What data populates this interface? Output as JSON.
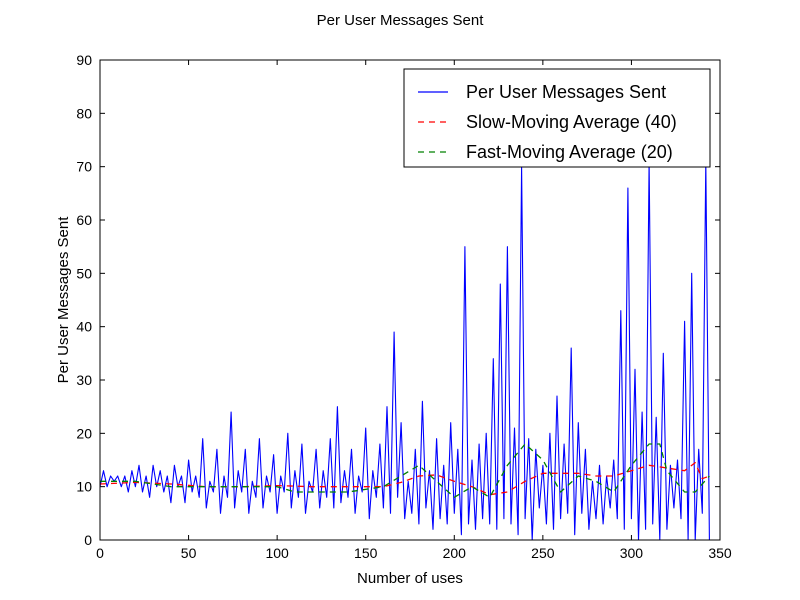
{
  "chart_data": {
    "type": "line",
    "title": "Per User Messages Sent",
    "xlabel": "Number of uses",
    "ylabel": "Per User Messages Sent",
    "xlim": [
      0,
      350
    ],
    "ylim": [
      0,
      90
    ],
    "xticks": [
      0,
      50,
      100,
      150,
      200,
      250,
      300,
      350
    ],
    "yticks": [
      0,
      10,
      20,
      30,
      40,
      50,
      60,
      70,
      80,
      90
    ],
    "grid": false,
    "legend_position": "top-right",
    "series": [
      {
        "name": "Per User Messages Sent",
        "color": "#0000ff",
        "style": "solid",
        "points": [
          [
            0,
            10
          ],
          [
            2,
            13
          ],
          [
            4,
            10
          ],
          [
            6,
            12
          ],
          [
            8,
            11
          ],
          [
            10,
            12
          ],
          [
            12,
            10
          ],
          [
            14,
            12
          ],
          [
            16,
            9
          ],
          [
            18,
            13
          ],
          [
            20,
            10
          ],
          [
            22,
            14
          ],
          [
            24,
            9
          ],
          [
            26,
            12
          ],
          [
            28,
            8
          ],
          [
            30,
            14
          ],
          [
            32,
            10
          ],
          [
            34,
            13
          ],
          [
            36,
            9
          ],
          [
            38,
            12
          ],
          [
            40,
            7
          ],
          [
            42,
            14
          ],
          [
            44,
            10
          ],
          [
            46,
            12
          ],
          [
            48,
            7
          ],
          [
            50,
            15
          ],
          [
            52,
            9
          ],
          [
            54,
            12
          ],
          [
            56,
            8
          ],
          [
            58,
            19
          ],
          [
            60,
            6
          ],
          [
            62,
            11
          ],
          [
            64,
            9
          ],
          [
            66,
            17
          ],
          [
            68,
            5
          ],
          [
            70,
            12
          ],
          [
            72,
            8
          ],
          [
            74,
            24
          ],
          [
            76,
            6
          ],
          [
            78,
            13
          ],
          [
            80,
            9
          ],
          [
            82,
            17
          ],
          [
            84,
            5
          ],
          [
            86,
            11
          ],
          [
            88,
            8
          ],
          [
            90,
            19
          ],
          [
            92,
            6
          ],
          [
            94,
            12
          ],
          [
            96,
            9
          ],
          [
            98,
            16
          ],
          [
            100,
            5
          ],
          [
            102,
            12
          ],
          [
            104,
            9
          ],
          [
            106,
            20
          ],
          [
            108,
            6
          ],
          [
            110,
            13
          ],
          [
            112,
            8
          ],
          [
            114,
            18
          ],
          [
            116,
            5
          ],
          [
            118,
            11
          ],
          [
            120,
            9
          ],
          [
            122,
            17
          ],
          [
            124,
            6
          ],
          [
            126,
            13
          ],
          [
            128,
            8
          ],
          [
            130,
            19
          ],
          [
            132,
            6
          ],
          [
            134,
            25
          ],
          [
            136,
            7
          ],
          [
            138,
            13
          ],
          [
            140,
            8
          ],
          [
            142,
            17
          ],
          [
            144,
            5
          ],
          [
            146,
            12
          ],
          [
            148,
            9
          ],
          [
            150,
            21
          ],
          [
            152,
            4
          ],
          [
            154,
            13
          ],
          [
            156,
            8
          ],
          [
            158,
            18
          ],
          [
            160,
            6
          ],
          [
            162,
            25
          ],
          [
            164,
            5
          ],
          [
            166,
            39
          ],
          [
            168,
            8
          ],
          [
            170,
            22
          ],
          [
            172,
            4
          ],
          [
            174,
            11
          ],
          [
            176,
            5
          ],
          [
            178,
            17
          ],
          [
            180,
            3
          ],
          [
            182,
            26
          ],
          [
            184,
            6
          ],
          [
            186,
            13
          ],
          [
            188,
            2
          ],
          [
            190,
            19
          ],
          [
            192,
            4
          ],
          [
            194,
            14
          ],
          [
            196,
            3
          ],
          [
            198,
            22
          ],
          [
            200,
            5
          ],
          [
            202,
            17
          ],
          [
            204,
            1
          ],
          [
            206,
            55
          ],
          [
            208,
            3
          ],
          [
            210,
            15
          ],
          [
            212,
            2
          ],
          [
            214,
            18
          ],
          [
            216,
            4
          ],
          [
            218,
            20
          ],
          [
            220,
            3
          ],
          [
            222,
            34
          ],
          [
            224,
            2
          ],
          [
            226,
            48
          ],
          [
            228,
            4
          ],
          [
            230,
            55
          ],
          [
            232,
            3
          ],
          [
            234,
            21
          ],
          [
            236,
            1
          ],
          [
            238,
            70
          ],
          [
            240,
            4
          ],
          [
            242,
            19
          ],
          [
            244,
            0
          ],
          [
            246,
            17
          ],
          [
            248,
            6
          ],
          [
            250,
            14
          ],
          [
            252,
            3
          ],
          [
            254,
            20
          ],
          [
            256,
            2
          ],
          [
            258,
            27
          ],
          [
            260,
            4
          ],
          [
            262,
            18
          ],
          [
            264,
            5
          ],
          [
            266,
            36
          ],
          [
            268,
            1
          ],
          [
            270,
            22
          ],
          [
            272,
            5
          ],
          [
            274,
            17
          ],
          [
            276,
            2
          ],
          [
            278,
            11
          ],
          [
            280,
            4
          ],
          [
            282,
            14
          ],
          [
            284,
            3
          ],
          [
            286,
            12
          ],
          [
            288,
            6
          ],
          [
            290,
            15
          ],
          [
            292,
            4
          ],
          [
            294,
            43
          ],
          [
            296,
            2
          ],
          [
            298,
            66
          ],
          [
            300,
            4
          ],
          [
            302,
            32
          ],
          [
            304,
            0
          ],
          [
            306,
            24
          ],
          [
            308,
            2
          ],
          [
            310,
            71
          ],
          [
            312,
            3
          ],
          [
            314,
            23
          ],
          [
            316,
            0
          ],
          [
            318,
            35
          ],
          [
            320,
            2
          ],
          [
            322,
            14
          ],
          [
            324,
            6
          ],
          [
            326,
            15
          ],
          [
            328,
            4
          ],
          [
            330,
            41
          ],
          [
            332,
            0
          ],
          [
            334,
            50
          ],
          [
            336,
            0
          ],
          [
            338,
            17
          ],
          [
            340,
            5
          ],
          [
            342,
            71
          ],
          [
            344,
            0
          ]
        ]
      },
      {
        "name": "Slow-Moving Average (40)",
        "color": "#ff0000",
        "style": "dashed",
        "points": [
          [
            0,
            10.5
          ],
          [
            20,
            10.8
          ],
          [
            40,
            10.5
          ],
          [
            60,
            10.0
          ],
          [
            80,
            10.0
          ],
          [
            100,
            10.2
          ],
          [
            120,
            10.0
          ],
          [
            140,
            10.0
          ],
          [
            160,
            10.0
          ],
          [
            170,
            10.8
          ],
          [
            180,
            12.0
          ],
          [
            190,
            12.2
          ],
          [
            200,
            11.0
          ],
          [
            210,
            10.0
          ],
          [
            220,
            8.5
          ],
          [
            230,
            9.0
          ],
          [
            240,
            11.0
          ],
          [
            250,
            12.5
          ],
          [
            260,
            12.5
          ],
          [
            270,
            12.5
          ],
          [
            280,
            12.0
          ],
          [
            290,
            12.0
          ],
          [
            300,
            13.0
          ],
          [
            310,
            14.0
          ],
          [
            320,
            13.5
          ],
          [
            330,
            13.0
          ],
          [
            336,
            14.5
          ],
          [
            340,
            11.5
          ],
          [
            344,
            12.0
          ]
        ]
      },
      {
        "name": "Fast-Moving Average (20)",
        "color": "#008000",
        "style": "dashed",
        "points": [
          [
            0,
            11
          ],
          [
            20,
            11
          ],
          [
            40,
            10
          ],
          [
            60,
            10
          ],
          [
            80,
            10
          ],
          [
            100,
            10
          ],
          [
            110,
            9
          ],
          [
            120,
            9
          ],
          [
            140,
            9
          ],
          [
            160,
            10
          ],
          [
            170,
            12
          ],
          [
            180,
            14
          ],
          [
            190,
            11
          ],
          [
            200,
            8
          ],
          [
            210,
            10
          ],
          [
            220,
            8
          ],
          [
            230,
            14
          ],
          [
            240,
            18
          ],
          [
            250,
            15
          ],
          [
            260,
            9
          ],
          [
            270,
            12
          ],
          [
            280,
            11
          ],
          [
            290,
            9
          ],
          [
            300,
            14
          ],
          [
            310,
            18
          ],
          [
            316,
            18
          ],
          [
            320,
            13
          ],
          [
            330,
            9
          ],
          [
            336,
            9
          ],
          [
            344,
            12
          ]
        ]
      }
    ]
  }
}
